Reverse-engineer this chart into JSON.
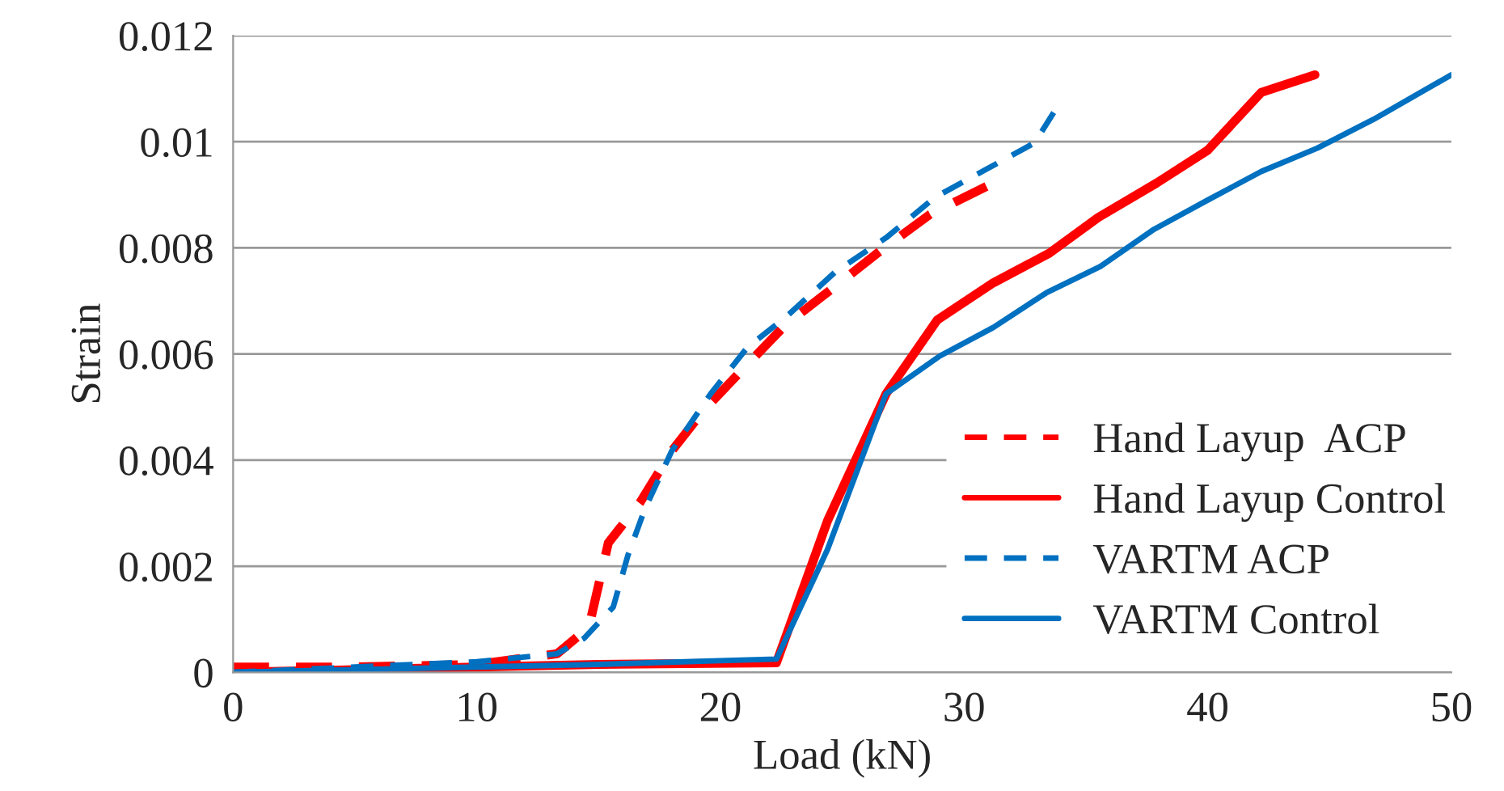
{
  "chart_data": {
    "type": "line",
    "xlabel": "Load (kN)",
    "ylabel": "Strain",
    "xlim": [
      0,
      50
    ],
    "xticks": [
      0,
      10,
      20,
      30,
      40,
      50
    ],
    "ylim": [
      0,
      0.012
    ],
    "yticks": [
      0,
      0.002,
      0.004,
      0.006,
      0.008,
      0.01,
      0.012
    ],
    "grid": "y",
    "legend": "right",
    "series": [
      {
        "name": "Hand Layup  ACP",
        "color": "#ff0000",
        "line_style": "dashed",
        "x": [
          0,
          5,
          10,
          13.3,
          14.6,
          15.4,
          16.7,
          18.0,
          19.3,
          21.1,
          22.7,
          24.5,
          26.5,
          28.6,
          31.2
        ],
        "values": [
          0.0001,
          0.0001,
          0.00015,
          0.00035,
          0.00085,
          0.00244,
          0.0032,
          0.00417,
          0.00493,
          0.0058,
          0.00656,
          0.0072,
          0.00792,
          0.00863,
          0.00922
        ]
      },
      {
        "name": "Hand Layup Control",
        "color": "#ff0000",
        "line_style": "solid",
        "x": [
          0,
          10,
          15,
          22.3,
          24.4,
          26.8,
          28.9,
          31.2,
          33.5,
          35.5,
          37.9,
          40.0,
          42.2,
          44.4
        ],
        "values": [
          0,
          0.0001,
          0.00015,
          0.00018,
          0.00286,
          0.00525,
          0.00664,
          0.00734,
          0.0079,
          0.00857,
          0.00922,
          0.00984,
          0.01093,
          0.01126
        ]
      },
      {
        "name": "VARTM ACP",
        "color": "#0070c0",
        "line_style": "dashed",
        "x": [
          0,
          5,
          10,
          13.3,
          14.4,
          15.6,
          16.2,
          16.9,
          18.0,
          19.6,
          21.1,
          22.7,
          24.7,
          26.8,
          28.8,
          32.9,
          33.8
        ],
        "values": [
          0,
          0.0001,
          0.0002,
          0.00035,
          0.00064,
          0.00123,
          0.0022,
          0.00308,
          0.00417,
          0.00525,
          0.00612,
          0.0067,
          0.00754,
          0.00819,
          0.00895,
          0.00998,
          0.01064
        ]
      },
      {
        "name": "VARTM Control",
        "color": "#0070c0",
        "line_style": "solid",
        "x": [
          0,
          10,
          15,
          20,
          22.3,
          24.4,
          26.8,
          29.0,
          31.2,
          33.4,
          35.6,
          37.8,
          40.0,
          42.2,
          44.5,
          46.8,
          50.0
        ],
        "values": [
          0,
          0.0001,
          0.00015,
          0.00022,
          0.00025,
          0.00232,
          0.00525,
          0.00596,
          0.0065,
          0.00716,
          0.00765,
          0.00835,
          0.0089,
          0.00944,
          0.00988,
          0.01042,
          0.01126
        ]
      }
    ]
  }
}
